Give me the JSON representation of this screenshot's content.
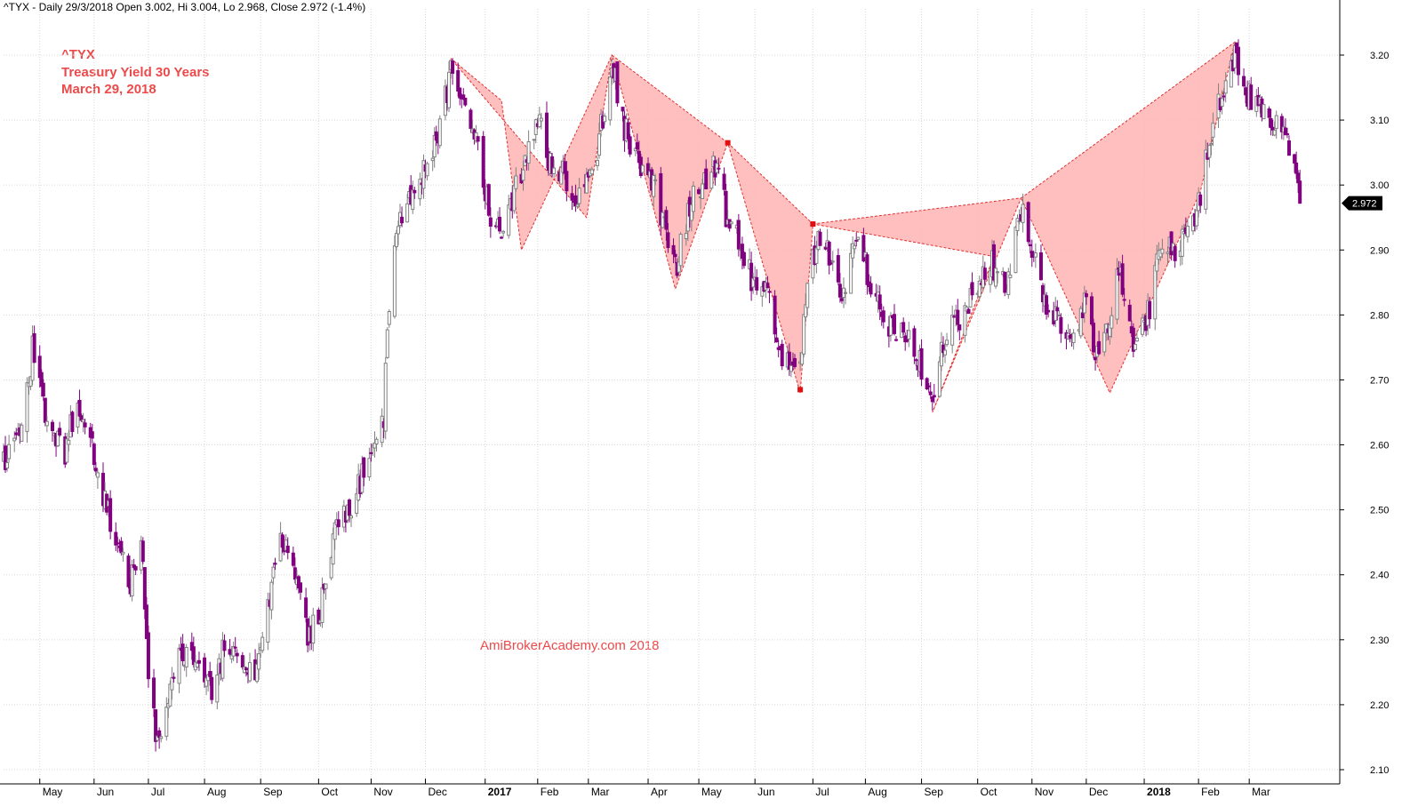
{
  "header": {
    "text": "^TYX - Daily 29/3/2018 Open 3.002, Hi 3.004, Lo 2.968, Close 2.972 (-1.4%)"
  },
  "annotations": {
    "ticker": "^TYX",
    "name": "Treasury Yield 30 Years",
    "date": "March 29, 2018"
  },
  "watermark": "AmiBrokerAcademy.com  2018",
  "colors": {
    "up_candle": "#808080",
    "down_candle": "#800080",
    "pattern_fill": "#ffb4b4",
    "pattern_stroke": "#e03030",
    "annotation_text": "#ec4a4a",
    "grid": "#d8d8d8"
  },
  "chart_data": {
    "type": "candlestick",
    "title": "",
    "ylim": [
      2.08,
      3.23
    ],
    "y_ticks": [
      2.1,
      2.2,
      2.3,
      2.4,
      2.5,
      2.6,
      2.7,
      2.8,
      2.9,
      3.0,
      3.1,
      3.2
    ],
    "y_tick_labels": [
      "2.10",
      "2.20",
      "2.30",
      "2.40",
      "2.50",
      "2.60",
      "2.70",
      "2.80",
      "2.90",
      "3.00",
      "3.10",
      "3.20"
    ],
    "x_range": [
      "2016-04-12",
      "2018-04-20"
    ],
    "x_ticks": [
      {
        "label": "May",
        "date": "2016-05-02",
        "bold": false
      },
      {
        "label": "Jun",
        "date": "2016-06-01",
        "bold": false
      },
      {
        "label": "Jul",
        "date": "2016-07-01",
        "bold": false
      },
      {
        "label": "Aug",
        "date": "2016-08-01",
        "bold": false
      },
      {
        "label": "Sep",
        "date": "2016-09-01",
        "bold": false
      },
      {
        "label": "Oct",
        "date": "2016-10-03",
        "bold": false
      },
      {
        "label": "Nov",
        "date": "2016-11-01",
        "bold": false
      },
      {
        "label": "Dec",
        "date": "2016-12-01",
        "bold": false
      },
      {
        "label": "2017",
        "date": "2017-01-03",
        "bold": true
      },
      {
        "label": "Feb",
        "date": "2017-02-01",
        "bold": false
      },
      {
        "label": "Mar",
        "date": "2017-03-01",
        "bold": false
      },
      {
        "label": "Apr",
        "date": "2017-04-03",
        "bold": false
      },
      {
        "label": "May",
        "date": "2017-05-01",
        "bold": false
      },
      {
        "label": "Jun",
        "date": "2017-06-01",
        "bold": false
      },
      {
        "label": "Jul",
        "date": "2017-07-03",
        "bold": false
      },
      {
        "label": "Aug",
        "date": "2017-08-01",
        "bold": false
      },
      {
        "label": "Sep",
        "date": "2017-09-01",
        "bold": false
      },
      {
        "label": "Oct",
        "date": "2017-10-02",
        "bold": false
      },
      {
        "label": "Nov",
        "date": "2017-11-01",
        "bold": false
      },
      {
        "label": "Dec",
        "date": "2017-12-01",
        "bold": false
      },
      {
        "label": "2018",
        "date": "2018-01-02",
        "bold": true
      },
      {
        "label": "Feb",
        "date": "2018-02-01",
        "bold": false
      },
      {
        "label": "Mar",
        "date": "2018-03-01",
        "bold": false
      }
    ],
    "last_close_label": "2.972",
    "last_close": 2.972,
    "price_path": [
      [
        "2016-04-12",
        2.58
      ],
      [
        "2016-04-22",
        2.62
      ],
      [
        "2016-04-26",
        2.7
      ],
      [
        "2016-04-28",
        2.75
      ],
      [
        "2016-05-06",
        2.64
      ],
      [
        "2016-05-16",
        2.58
      ],
      [
        "2016-05-20",
        2.64
      ],
      [
        "2016-05-26",
        2.66
      ],
      [
        "2016-06-01",
        2.58
      ],
      [
        "2016-06-08",
        2.5
      ],
      [
        "2016-06-15",
        2.45
      ],
      [
        "2016-06-21",
        2.38
      ],
      [
        "2016-06-27",
        2.46
      ],
      [
        "2016-06-30",
        2.28
      ],
      [
        "2016-07-06",
        2.13
      ],
      [
        "2016-07-11",
        2.2
      ],
      [
        "2016-07-18",
        2.29
      ],
      [
        "2016-07-27",
        2.26
      ],
      [
        "2016-08-05",
        2.22
      ],
      [
        "2016-08-12",
        2.29
      ],
      [
        "2016-08-22",
        2.26
      ],
      [
        "2016-08-30",
        2.24
      ],
      [
        "2016-09-06",
        2.36
      ],
      [
        "2016-09-12",
        2.45
      ],
      [
        "2016-09-20",
        2.4
      ],
      [
        "2016-09-28",
        2.3
      ],
      [
        "2016-10-04",
        2.35
      ],
      [
        "2016-10-12",
        2.46
      ],
      [
        "2016-10-20",
        2.5
      ],
      [
        "2016-10-31",
        2.58
      ],
      [
        "2016-11-04",
        2.6
      ],
      [
        "2016-11-08",
        2.63
      ],
      [
        "2016-11-10",
        2.78
      ],
      [
        "2016-11-15",
        2.92
      ],
      [
        "2016-11-21",
        2.98
      ],
      [
        "2016-11-30",
        3.02
      ],
      [
        "2016-12-07",
        3.07
      ],
      [
        "2016-12-15",
        3.17
      ],
      [
        "2016-12-21",
        3.13
      ],
      [
        "2016-12-29",
        3.06
      ],
      [
        "2017-01-06",
        2.95
      ],
      [
        "2017-01-13",
        2.92
      ],
      [
        "2017-01-20",
        3.0
      ],
      [
        "2017-01-27",
        3.05
      ],
      [
        "2017-02-03",
        3.1
      ],
      [
        "2017-02-08",
        3.03
      ],
      [
        "2017-02-17",
        3.01
      ],
      [
        "2017-02-24",
        2.98
      ],
      [
        "2017-03-06",
        3.06
      ],
      [
        "2017-03-14",
        3.19
      ],
      [
        "2017-03-21",
        3.09
      ],
      [
        "2017-03-31",
        3.02
      ],
      [
        "2017-04-07",
        2.99
      ],
      [
        "2017-04-13",
        2.92
      ],
      [
        "2017-04-18",
        2.87
      ],
      [
        "2017-04-27",
        2.98
      ],
      [
        "2017-05-05",
        3.0
      ],
      [
        "2017-05-11",
        3.04
      ],
      [
        "2017-05-17",
        2.94
      ],
      [
        "2017-05-24",
        2.91
      ],
      [
        "2017-06-02",
        2.83
      ],
      [
        "2017-06-08",
        2.84
      ],
      [
        "2017-06-14",
        2.74
      ],
      [
        "2017-06-26",
        2.72
      ],
      [
        "2017-06-30",
        2.84
      ],
      [
        "2017-07-06",
        2.93
      ],
      [
        "2017-07-13",
        2.89
      ],
      [
        "2017-07-20",
        2.82
      ],
      [
        "2017-07-27",
        2.92
      ],
      [
        "2017-08-04",
        2.85
      ],
      [
        "2017-08-14",
        2.79
      ],
      [
        "2017-08-22",
        2.77
      ],
      [
        "2017-08-31",
        2.73
      ],
      [
        "2017-09-07",
        2.68
      ],
      [
        "2017-09-15",
        2.77
      ],
      [
        "2017-09-25",
        2.8
      ],
      [
        "2017-10-03",
        2.86
      ],
      [
        "2017-10-10",
        2.88
      ],
      [
        "2017-10-18",
        2.84
      ],
      [
        "2017-10-26",
        2.96
      ],
      [
        "2017-11-01",
        2.9
      ],
      [
        "2017-11-08",
        2.82
      ],
      [
        "2017-11-15",
        2.79
      ],
      [
        "2017-11-24",
        2.76
      ],
      [
        "2017-11-30",
        2.82
      ],
      [
        "2017-12-07",
        2.74
      ],
      [
        "2017-12-12",
        2.78
      ],
      [
        "2017-12-19",
        2.87
      ],
      [
        "2017-12-27",
        2.75
      ],
      [
        "2018-01-05",
        2.81
      ],
      [
        "2018-01-10",
        2.89
      ],
      [
        "2018-01-18",
        2.9
      ],
      [
        "2018-01-25",
        2.93
      ],
      [
        "2018-01-31",
        2.96
      ],
      [
        "2018-02-06",
        3.05
      ],
      [
        "2018-02-13",
        3.13
      ],
      [
        "2018-02-21",
        3.2
      ],
      [
        "2018-02-26",
        3.14
      ],
      [
        "2018-03-05",
        3.13
      ],
      [
        "2018-03-12",
        3.09
      ],
      [
        "2018-03-20",
        3.1
      ],
      [
        "2018-03-26",
        3.03
      ],
      [
        "2018-03-29",
        2.97
      ]
    ],
    "harmonic_patterns": [
      {
        "points": [
          [
            "2016-12-15",
            3.195
          ],
          [
            "2017-01-12",
            3.13
          ],
          [
            "2017-01-23",
            2.9
          ],
          [
            "2017-03-14",
            3.2
          ],
          [
            "2017-02-28",
            2.95
          ]
        ]
      },
      {
        "points": [
          [
            "2017-03-14",
            3.2
          ],
          [
            "2017-05-17",
            3.065
          ],
          [
            "2017-04-18",
            2.84
          ]
        ]
      },
      {
        "points": [
          [
            "2017-05-17",
            3.065
          ],
          [
            "2017-07-03",
            2.94
          ],
          [
            "2017-06-26",
            2.68
          ]
        ]
      },
      {
        "points": [
          [
            "2017-07-03",
            2.94
          ],
          [
            "2017-10-26",
            2.98
          ],
          [
            "2017-09-07",
            2.65
          ],
          [
            "2017-10-11",
            2.89
          ]
        ]
      },
      {
        "points": [
          [
            "2017-10-26",
            2.98
          ],
          [
            "2018-02-21",
            3.22
          ],
          [
            "2018-02-02",
            2.99
          ],
          [
            "2017-12-14",
            2.68
          ]
        ]
      }
    ],
    "marked_points": [
      [
        "2017-05-17",
        3.065
      ],
      [
        "2017-06-26",
        2.685
      ],
      [
        "2017-07-03",
        2.94
      ]
    ]
  }
}
